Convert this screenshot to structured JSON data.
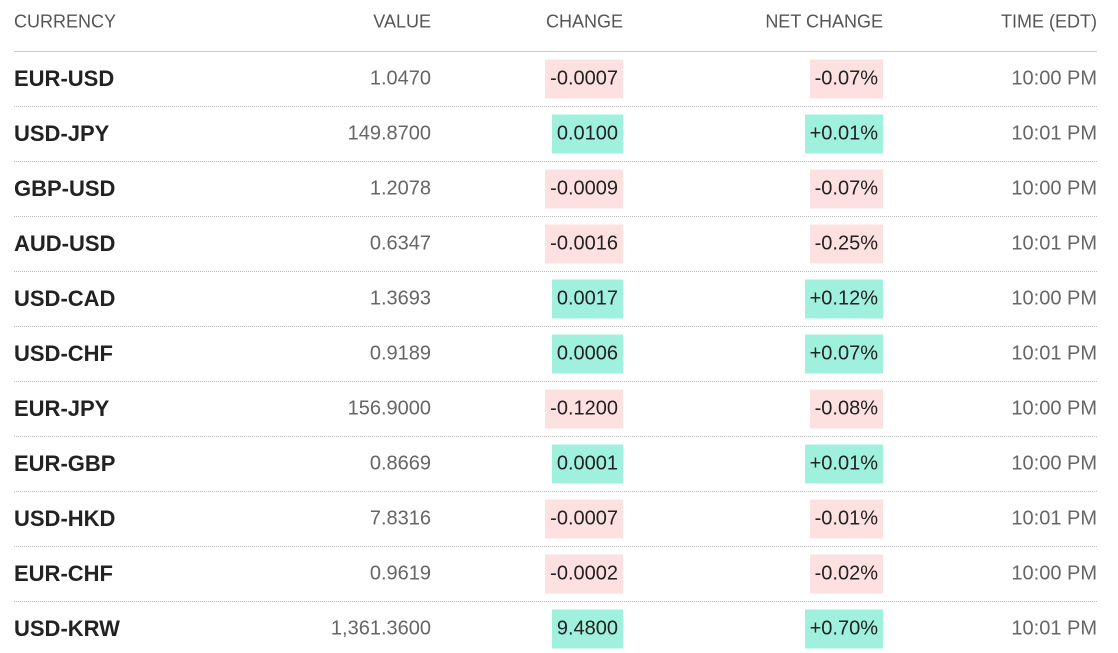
{
  "table": {
    "header": [
      "CURRENCY",
      "VALUE",
      "CHANGE",
      "NET CHANGE",
      "TIME (EDT)"
    ],
    "rows": [
      [
        "EUR-USD",
        "1.0470",
        "-0.0007",
        "-0.07%",
        "10:00 PM"
      ],
      [
        "USD-JPY",
        "149.8700",
        "0.0100",
        "+0.01%",
        "10:01 PM"
      ],
      [
        "GBP-USD",
        "1.2078",
        "-0.0009",
        "-0.07%",
        "10:00 PM"
      ],
      [
        "AUD-USD",
        "0.6347",
        "-0.0016",
        "-0.25%",
        "10:01 PM"
      ],
      [
        "USD-CAD",
        "1.3693",
        "0.0017",
        "+0.12%",
        "10:00 PM"
      ],
      [
        "USD-CHF",
        "0.9189",
        "0.0006",
        "+0.07%",
        "10:01 PM"
      ],
      [
        "EUR-JPY",
        "156.9000",
        "-0.1200",
        "-0.08%",
        "10:00 PM"
      ],
      [
        "EUR-GBP",
        "0.8669",
        "0.0001",
        "+0.01%",
        "10:00 PM"
      ],
      [
        "USD-HKD",
        "7.8316",
        "-0.0007",
        "-0.01%",
        "10:01 PM"
      ],
      [
        "EUR-CHF",
        "0.9619",
        "-0.0002",
        "-0.02%",
        "10:00 PM"
      ],
      [
        "USD-KRW",
        "1,361.3600",
        "9.4800",
        "+0.70%",
        "10:01 PM"
      ]
    ]
  }
}
